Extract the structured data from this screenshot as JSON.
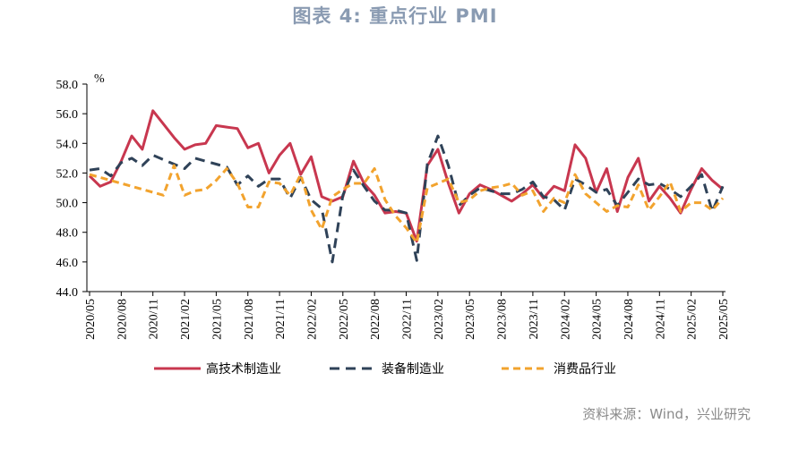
{
  "title": "图表 4:  重点行业 PMI",
  "source": "资料来源：Wind，兴业研究",
  "chart_data": {
    "type": "line",
    "ylabel": "%",
    "ylim": [
      44,
      58
    ],
    "yticks": [
      "58.0",
      "56.0",
      "54.0",
      "52.0",
      "50.0",
      "48.0",
      "46.0",
      "44.0"
    ],
    "xticks": [
      "2020/05",
      "2020/08",
      "2020/11",
      "2021/02",
      "2021/05",
      "2021/08",
      "2021/11",
      "2022/02",
      "2022/05",
      "2022/08",
      "2022/11",
      "2023/02",
      "2023/05",
      "2023/08",
      "2023/11",
      "2024/02",
      "2024/05",
      "2024/08",
      "2024/11",
      "2025/02",
      "2025/05"
    ],
    "x": [
      "2020/05",
      "2020/06",
      "2020/07",
      "2020/08",
      "2020/09",
      "2020/10",
      "2020/11",
      "2020/12",
      "2021/01",
      "2021/02",
      "2021/03",
      "2021/04",
      "2021/05",
      "2021/06",
      "2021/07",
      "2021/08",
      "2021/09",
      "2021/10",
      "2021/11",
      "2021/12",
      "2022/01",
      "2022/02",
      "2022/03",
      "2022/04",
      "2022/05",
      "2022/06",
      "2022/07",
      "2022/08",
      "2022/09",
      "2022/10",
      "2022/11",
      "2022/12",
      "2023/01",
      "2023/02",
      "2023/03",
      "2023/04",
      "2023/05",
      "2023/06",
      "2023/07",
      "2023/08",
      "2023/09",
      "2023/10",
      "2023/11",
      "2023/12",
      "2024/01",
      "2024/02",
      "2024/03",
      "2024/04",
      "2024/05",
      "2024/06",
      "2024/07",
      "2024/08",
      "2024/09",
      "2024/10",
      "2024/11",
      "2024/12",
      "2025/01",
      "2025/02",
      "2025/03",
      "2025/04",
      "2025/05"
    ],
    "series": [
      {
        "name": "高技术制造业",
        "color": "#c8374f",
        "dash": "solid",
        "values": [
          51.8,
          51.1,
          51.4,
          52.8,
          54.5,
          53.6,
          56.2,
          55.3,
          54.4,
          53.6,
          53.9,
          54.0,
          55.2,
          55.1,
          55.0,
          53.7,
          54.0,
          52.0,
          53.2,
          54.0,
          51.9,
          53.1,
          50.4,
          50.1,
          50.4,
          52.8,
          51.3,
          50.5,
          49.3,
          49.4,
          49.3,
          47.4,
          52.5,
          53.6,
          51.3,
          49.3,
          50.6,
          51.2,
          50.9,
          50.5,
          50.1,
          50.6,
          51.2,
          50.3,
          51.1,
          50.8,
          53.9,
          53.0,
          50.7,
          52.3,
          49.4,
          51.7,
          53.0,
          50.1,
          51.1,
          50.3,
          49.3,
          50.9,
          52.3,
          51.5,
          50.9
        ]
      },
      {
        "name": "装备制造业",
        "color": "#2f4258",
        "dash": "11,7",
        "values": [
          52.2,
          52.3,
          51.8,
          52.7,
          53.0,
          52.5,
          53.2,
          52.9,
          52.6,
          52.3,
          53.0,
          52.8,
          52.6,
          52.4,
          51.2,
          51.8,
          51.1,
          51.6,
          51.6,
          50.3,
          51.7,
          50.2,
          49.6,
          46.0,
          50.5,
          52.2,
          51.1,
          50.1,
          49.5,
          49.5,
          49.3,
          46.1,
          52.6,
          54.5,
          52.5,
          49.8,
          50.5,
          51.0,
          50.8,
          50.6,
          50.6,
          50.9,
          51.4,
          50.4,
          50.2,
          49.5,
          51.6,
          51.2,
          50.7,
          50.9,
          49.8,
          50.7,
          51.6,
          51.2,
          51.3,
          50.9,
          50.4,
          51.1,
          51.9,
          49.4,
          51.1
        ]
      },
      {
        "name": "消费品行业",
        "color": "#f2a32e",
        "dash": "8,5",
        "values": [
          51.9,
          51.7,
          51.5,
          51.3,
          51.1,
          50.9,
          50.7,
          50.5,
          52.5,
          50.5,
          50.8,
          50.9,
          51.5,
          52.3,
          51.3,
          49.7,
          49.7,
          51.4,
          51.3,
          50.5,
          51.9,
          49.5,
          48.2,
          50.4,
          50.9,
          51.3,
          51.3,
          52.3,
          50.2,
          49.1,
          48.3,
          47.3,
          51.0,
          51.3,
          51.6,
          50.0,
          50.2,
          50.8,
          51.0,
          51.1,
          51.3,
          50.5,
          50.8,
          49.4,
          50.3,
          50.0,
          51.9,
          50.6,
          50.0,
          49.4,
          49.8,
          49.7,
          51.2,
          49.5,
          50.4,
          51.4,
          49.4,
          50.0,
          50.0,
          49.5,
          50.3
        ]
      }
    ],
    "legend": "bottom"
  }
}
